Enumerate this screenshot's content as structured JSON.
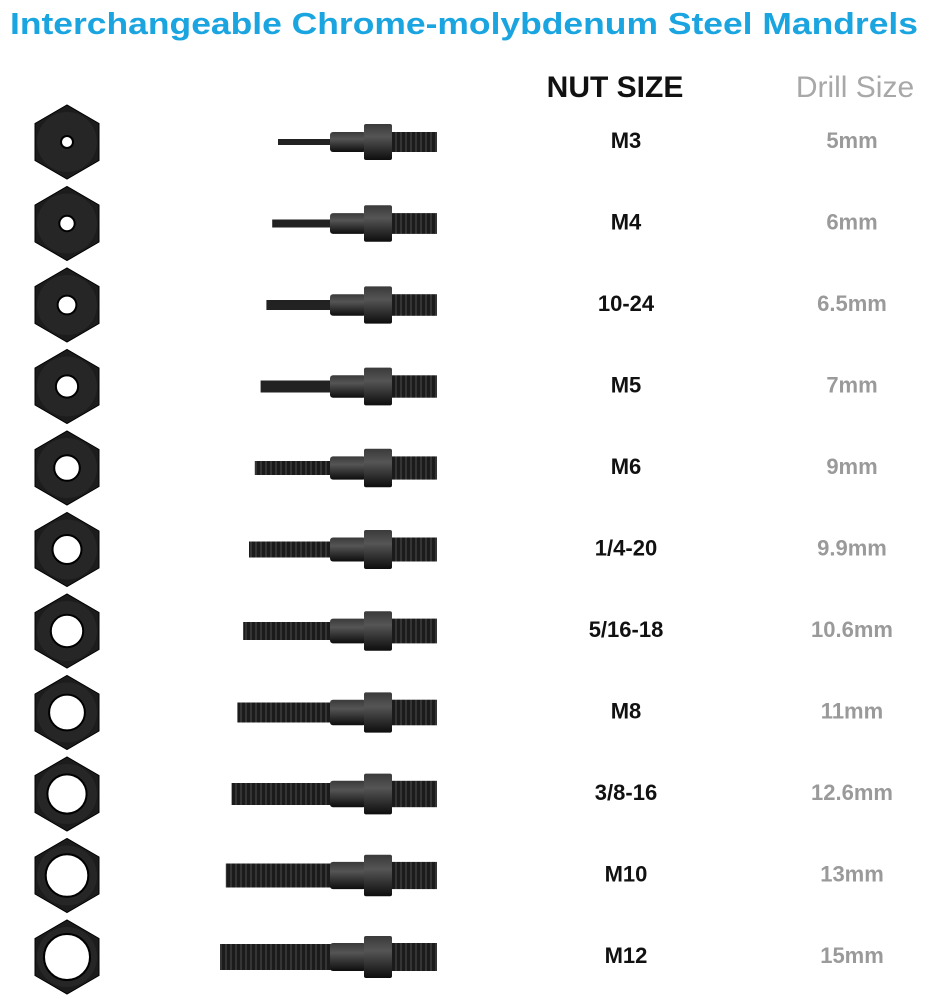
{
  "title": "Interchangeable Chrome-molybdenum Steel Mandrels",
  "header": {
    "nut_size": "NUT SIZE",
    "drill_size": "Drill Size"
  },
  "rows": [
    {
      "nut_size": "M3",
      "drill_size": "5mm"
    },
    {
      "nut_size": "M4",
      "drill_size": "6mm"
    },
    {
      "nut_size": "10-24",
      "drill_size": "6.5mm"
    },
    {
      "nut_size": "M5",
      "drill_size": "7mm"
    },
    {
      "nut_size": "M6",
      "drill_size": "9mm"
    },
    {
      "nut_size": "1/4-20",
      "drill_size": "9.9mm"
    },
    {
      "nut_size": "5/16-18",
      "drill_size": "10.6mm"
    },
    {
      "nut_size": "M8",
      "drill_size": "11mm"
    },
    {
      "nut_size": "3/8-16",
      "drill_size": "12.6mm"
    },
    {
      "nut_size": "M10",
      "drill_size": "13mm"
    },
    {
      "nut_size": "M12",
      "drill_size": "15mm"
    }
  ]
}
